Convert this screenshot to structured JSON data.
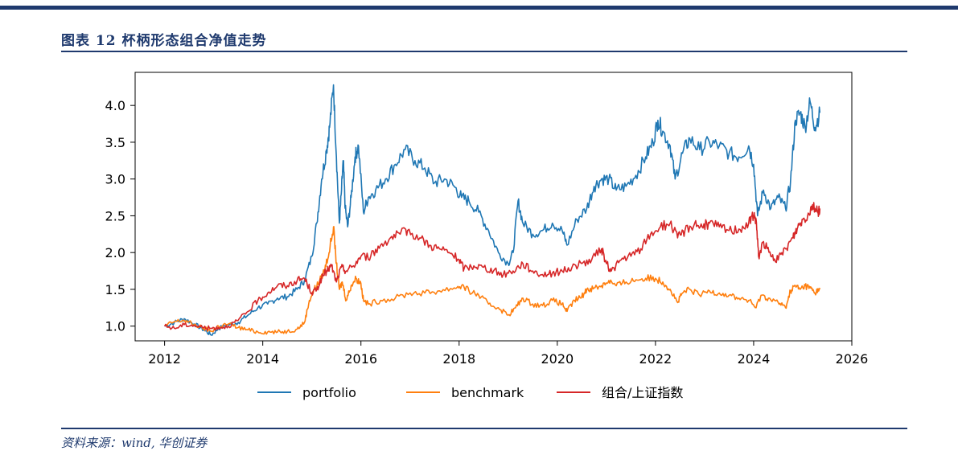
{
  "header": {
    "title": "图表 12   杯柄形态组合净值走势"
  },
  "footer": {
    "source": "资料来源：wind, 华创证券"
  },
  "colors": {
    "portfolio": "#1f77b4",
    "benchmark": "#ff7f0e",
    "index": "#d62728",
    "brand": "#1f3a6e"
  },
  "chart_data": {
    "type": "line",
    "title": "",
    "xlabel": "",
    "ylabel": "",
    "xlim": [
      2011.4,
      2026
    ],
    "ylim": [
      0.8,
      4.45
    ],
    "xticks": [
      2012,
      2014,
      2016,
      2018,
      2020,
      2022,
      2024,
      2026
    ],
    "xtick_labels": [
      "2012",
      "2014",
      "2016",
      "2018",
      "2020",
      "2022",
      "2024",
      "2026"
    ],
    "yticks": [
      1.0,
      1.5,
      2.0,
      2.5,
      3.0,
      3.5,
      4.0
    ],
    "ytick_labels": [
      "1.0",
      "1.5",
      "2.0",
      "2.5",
      "3.0",
      "3.5",
      "4.0"
    ],
    "grid": false,
    "legend_position": "bottom",
    "series": [
      {
        "name": "portfolio",
        "color": "#1f77b4",
        "points": [
          [
            2012.0,
            1.0
          ],
          [
            2012.2,
            1.05
          ],
          [
            2012.4,
            1.1
          ],
          [
            2012.6,
            1.03
          ],
          [
            2012.8,
            0.95
          ],
          [
            2012.95,
            0.88
          ],
          [
            2013.1,
            0.97
          ],
          [
            2013.3,
            1.02
          ],
          [
            2013.5,
            1.05
          ],
          [
            2013.7,
            1.15
          ],
          [
            2013.9,
            1.25
          ],
          [
            2014.1,
            1.3
          ],
          [
            2014.3,
            1.38
          ],
          [
            2014.5,
            1.4
          ],
          [
            2014.7,
            1.5
          ],
          [
            2014.85,
            1.62
          ],
          [
            2015.0,
            1.95
          ],
          [
            2015.1,
            2.4
          ],
          [
            2015.2,
            3.0
          ],
          [
            2015.3,
            3.4
          ],
          [
            2015.36,
            3.7
          ],
          [
            2015.44,
            4.28
          ],
          [
            2015.5,
            3.3
          ],
          [
            2015.56,
            2.4
          ],
          [
            2015.6,
            2.8
          ],
          [
            2015.64,
            3.25
          ],
          [
            2015.68,
            2.6
          ],
          [
            2015.73,
            2.35
          ],
          [
            2015.8,
            2.75
          ],
          [
            2015.88,
            3.3
          ],
          [
            2015.95,
            3.45
          ],
          [
            2016.05,
            2.55
          ],
          [
            2016.15,
            2.75
          ],
          [
            2016.3,
            2.85
          ],
          [
            2016.5,
            3.0
          ],
          [
            2016.7,
            3.2
          ],
          [
            2016.9,
            3.4
          ],
          [
            2017.1,
            3.25
          ],
          [
            2017.3,
            3.15
          ],
          [
            2017.5,
            2.95
          ],
          [
            2017.7,
            3.0
          ],
          [
            2017.9,
            2.9
          ],
          [
            2018.05,
            2.75
          ],
          [
            2018.2,
            2.7
          ],
          [
            2018.4,
            2.55
          ],
          [
            2018.6,
            2.3
          ],
          [
            2018.8,
            2.0
          ],
          [
            2019.0,
            1.85
          ],
          [
            2019.1,
            2.0
          ],
          [
            2019.2,
            2.7
          ],
          [
            2019.3,
            2.4
          ],
          [
            2019.5,
            2.25
          ],
          [
            2019.7,
            2.3
          ],
          [
            2019.9,
            2.4
          ],
          [
            2020.1,
            2.3
          ],
          [
            2020.2,
            2.1
          ],
          [
            2020.4,
            2.45
          ],
          [
            2020.6,
            2.6
          ],
          [
            2020.75,
            2.9
          ],
          [
            2020.9,
            3.0
          ],
          [
            2021.05,
            3.0
          ],
          [
            2021.2,
            2.85
          ],
          [
            2021.4,
            2.9
          ],
          [
            2021.6,
            3.05
          ],
          [
            2021.8,
            3.3
          ],
          [
            2021.95,
            3.5
          ],
          [
            2022.05,
            3.8
          ],
          [
            2022.15,
            3.65
          ],
          [
            2022.3,
            3.45
          ],
          [
            2022.4,
            3.0
          ],
          [
            2022.55,
            3.35
          ],
          [
            2022.7,
            3.55
          ],
          [
            2022.9,
            3.4
          ],
          [
            2023.1,
            3.5
          ],
          [
            2023.3,
            3.45
          ],
          [
            2023.5,
            3.35
          ],
          [
            2023.7,
            3.3
          ],
          [
            2023.9,
            3.45
          ],
          [
            2024.0,
            3.2
          ],
          [
            2024.08,
            2.5
          ],
          [
            2024.2,
            2.85
          ],
          [
            2024.35,
            2.6
          ],
          [
            2024.5,
            2.75
          ],
          [
            2024.65,
            2.6
          ],
          [
            2024.75,
            2.95
          ],
          [
            2024.85,
            3.8
          ],
          [
            2024.95,
            3.9
          ],
          [
            2025.05,
            3.7
          ],
          [
            2025.15,
            4.05
          ],
          [
            2025.25,
            3.7
          ],
          [
            2025.35,
            3.9
          ]
        ]
      },
      {
        "name": "benchmark",
        "color": "#ff7f0e",
        "points": [
          [
            2012.0,
            1.0
          ],
          [
            2012.2,
            1.06
          ],
          [
            2012.4,
            1.08
          ],
          [
            2012.6,
            1.02
          ],
          [
            2012.8,
            0.97
          ],
          [
            2012.95,
            0.93
          ],
          [
            2013.1,
            1.0
          ],
          [
            2013.3,
            1.03
          ],
          [
            2013.5,
            0.98
          ],
          [
            2013.7,
            0.95
          ],
          [
            2013.9,
            0.92
          ],
          [
            2014.1,
            0.92
          ],
          [
            2014.3,
            0.92
          ],
          [
            2014.5,
            0.93
          ],
          [
            2014.7,
            0.96
          ],
          [
            2014.85,
            1.05
          ],
          [
            2014.95,
            1.35
          ],
          [
            2015.05,
            1.5
          ],
          [
            2015.15,
            1.6
          ],
          [
            2015.25,
            1.75
          ],
          [
            2015.35,
            2.0
          ],
          [
            2015.44,
            2.35
          ],
          [
            2015.5,
            1.85
          ],
          [
            2015.56,
            1.5
          ],
          [
            2015.62,
            1.6
          ],
          [
            2015.7,
            1.35
          ],
          [
            2015.8,
            1.55
          ],
          [
            2015.9,
            1.65
          ],
          [
            2016.0,
            1.58
          ],
          [
            2016.05,
            1.35
          ],
          [
            2016.15,
            1.3
          ],
          [
            2016.4,
            1.35
          ],
          [
            2016.7,
            1.38
          ],
          [
            2017.0,
            1.45
          ],
          [
            2017.3,
            1.45
          ],
          [
            2017.6,
            1.48
          ],
          [
            2017.9,
            1.52
          ],
          [
            2018.05,
            1.55
          ],
          [
            2018.2,
            1.48
          ],
          [
            2018.4,
            1.42
          ],
          [
            2018.6,
            1.3
          ],
          [
            2018.8,
            1.25
          ],
          [
            2019.0,
            1.15
          ],
          [
            2019.15,
            1.25
          ],
          [
            2019.3,
            1.38
          ],
          [
            2019.5,
            1.3
          ],
          [
            2019.7,
            1.28
          ],
          [
            2019.9,
            1.35
          ],
          [
            2020.1,
            1.3
          ],
          [
            2020.2,
            1.2
          ],
          [
            2020.35,
            1.35
          ],
          [
            2020.5,
            1.4
          ],
          [
            2020.6,
            1.5
          ],
          [
            2020.75,
            1.52
          ],
          [
            2020.9,
            1.55
          ],
          [
            2021.05,
            1.62
          ],
          [
            2021.2,
            1.55
          ],
          [
            2021.4,
            1.6
          ],
          [
            2021.6,
            1.63
          ],
          [
            2021.8,
            1.65
          ],
          [
            2022.0,
            1.65
          ],
          [
            2022.15,
            1.6
          ],
          [
            2022.3,
            1.5
          ],
          [
            2022.45,
            1.32
          ],
          [
            2022.55,
            1.45
          ],
          [
            2022.7,
            1.5
          ],
          [
            2022.9,
            1.42
          ],
          [
            2023.1,
            1.48
          ],
          [
            2023.3,
            1.45
          ],
          [
            2023.5,
            1.42
          ],
          [
            2023.7,
            1.38
          ],
          [
            2023.9,
            1.35
          ],
          [
            2024.05,
            1.25
          ],
          [
            2024.15,
            1.42
          ],
          [
            2024.3,
            1.38
          ],
          [
            2024.5,
            1.32
          ],
          [
            2024.65,
            1.25
          ],
          [
            2024.75,
            1.48
          ],
          [
            2024.85,
            1.55
          ],
          [
            2024.95,
            1.5
          ],
          [
            2025.05,
            1.55
          ],
          [
            2025.15,
            1.52
          ],
          [
            2025.25,
            1.45
          ],
          [
            2025.35,
            1.52
          ]
        ]
      },
      {
        "name": "组合/上证指数",
        "color": "#d62728",
        "points": [
          [
            2012.0,
            1.0
          ],
          [
            2012.2,
            0.97
          ],
          [
            2012.4,
            1.02
          ],
          [
            2012.6,
            1.01
          ],
          [
            2012.8,
            0.98
          ],
          [
            2012.95,
            0.97
          ],
          [
            2013.1,
            0.98
          ],
          [
            2013.3,
            1.0
          ],
          [
            2013.5,
            1.08
          ],
          [
            2013.7,
            1.2
          ],
          [
            2013.9,
            1.35
          ],
          [
            2014.1,
            1.45
          ],
          [
            2014.3,
            1.55
          ],
          [
            2014.5,
            1.55
          ],
          [
            2014.7,
            1.62
          ],
          [
            2014.85,
            1.65
          ],
          [
            2015.0,
            1.45
          ],
          [
            2015.1,
            1.5
          ],
          [
            2015.2,
            1.65
          ],
          [
            2015.3,
            1.75
          ],
          [
            2015.4,
            1.82
          ],
          [
            2015.5,
            1.6
          ],
          [
            2015.6,
            1.8
          ],
          [
            2015.7,
            1.75
          ],
          [
            2015.85,
            1.82
          ],
          [
            2016.0,
            1.95
          ],
          [
            2016.2,
            1.95
          ],
          [
            2016.4,
            2.1
          ],
          [
            2016.6,
            2.2
          ],
          [
            2016.8,
            2.25
          ],
          [
            2016.95,
            2.3
          ],
          [
            2017.2,
            2.2
          ],
          [
            2017.4,
            2.1
          ],
          [
            2017.6,
            2.05
          ],
          [
            2017.8,
            2.0
          ],
          [
            2018.0,
            1.9
          ],
          [
            2018.1,
            1.78
          ],
          [
            2018.3,
            1.82
          ],
          [
            2018.5,
            1.8
          ],
          [
            2018.7,
            1.75
          ],
          [
            2018.9,
            1.7
          ],
          [
            2019.1,
            1.75
          ],
          [
            2019.3,
            1.85
          ],
          [
            2019.5,
            1.75
          ],
          [
            2019.7,
            1.7
          ],
          [
            2019.9,
            1.72
          ],
          [
            2020.1,
            1.75
          ],
          [
            2020.3,
            1.8
          ],
          [
            2020.5,
            1.85
          ],
          [
            2020.7,
            1.9
          ],
          [
            2020.9,
            2.05
          ],
          [
            2021.0,
            1.85
          ],
          [
            2021.1,
            1.75
          ],
          [
            2021.3,
            1.9
          ],
          [
            2021.5,
            1.95
          ],
          [
            2021.7,
            2.05
          ],
          [
            2021.9,
            2.25
          ],
          [
            2022.1,
            2.35
          ],
          [
            2022.3,
            2.4
          ],
          [
            2022.45,
            2.2
          ],
          [
            2022.6,
            2.3
          ],
          [
            2022.8,
            2.4
          ],
          [
            2022.95,
            2.35
          ],
          [
            2023.1,
            2.4
          ],
          [
            2023.3,
            2.35
          ],
          [
            2023.5,
            2.3
          ],
          [
            2023.7,
            2.32
          ],
          [
            2023.9,
            2.4
          ],
          [
            2024.0,
            2.5
          ],
          [
            2024.05,
            2.45
          ],
          [
            2024.1,
            1.95
          ],
          [
            2024.2,
            2.15
          ],
          [
            2024.35,
            1.95
          ],
          [
            2024.5,
            1.9
          ],
          [
            2024.65,
            2.05
          ],
          [
            2024.8,
            2.2
          ],
          [
            2024.9,
            2.35
          ],
          [
            2025.0,
            2.45
          ],
          [
            2025.1,
            2.5
          ],
          [
            2025.2,
            2.65
          ],
          [
            2025.3,
            2.55
          ],
          [
            2025.35,
            2.6
          ]
        ]
      }
    ]
  }
}
